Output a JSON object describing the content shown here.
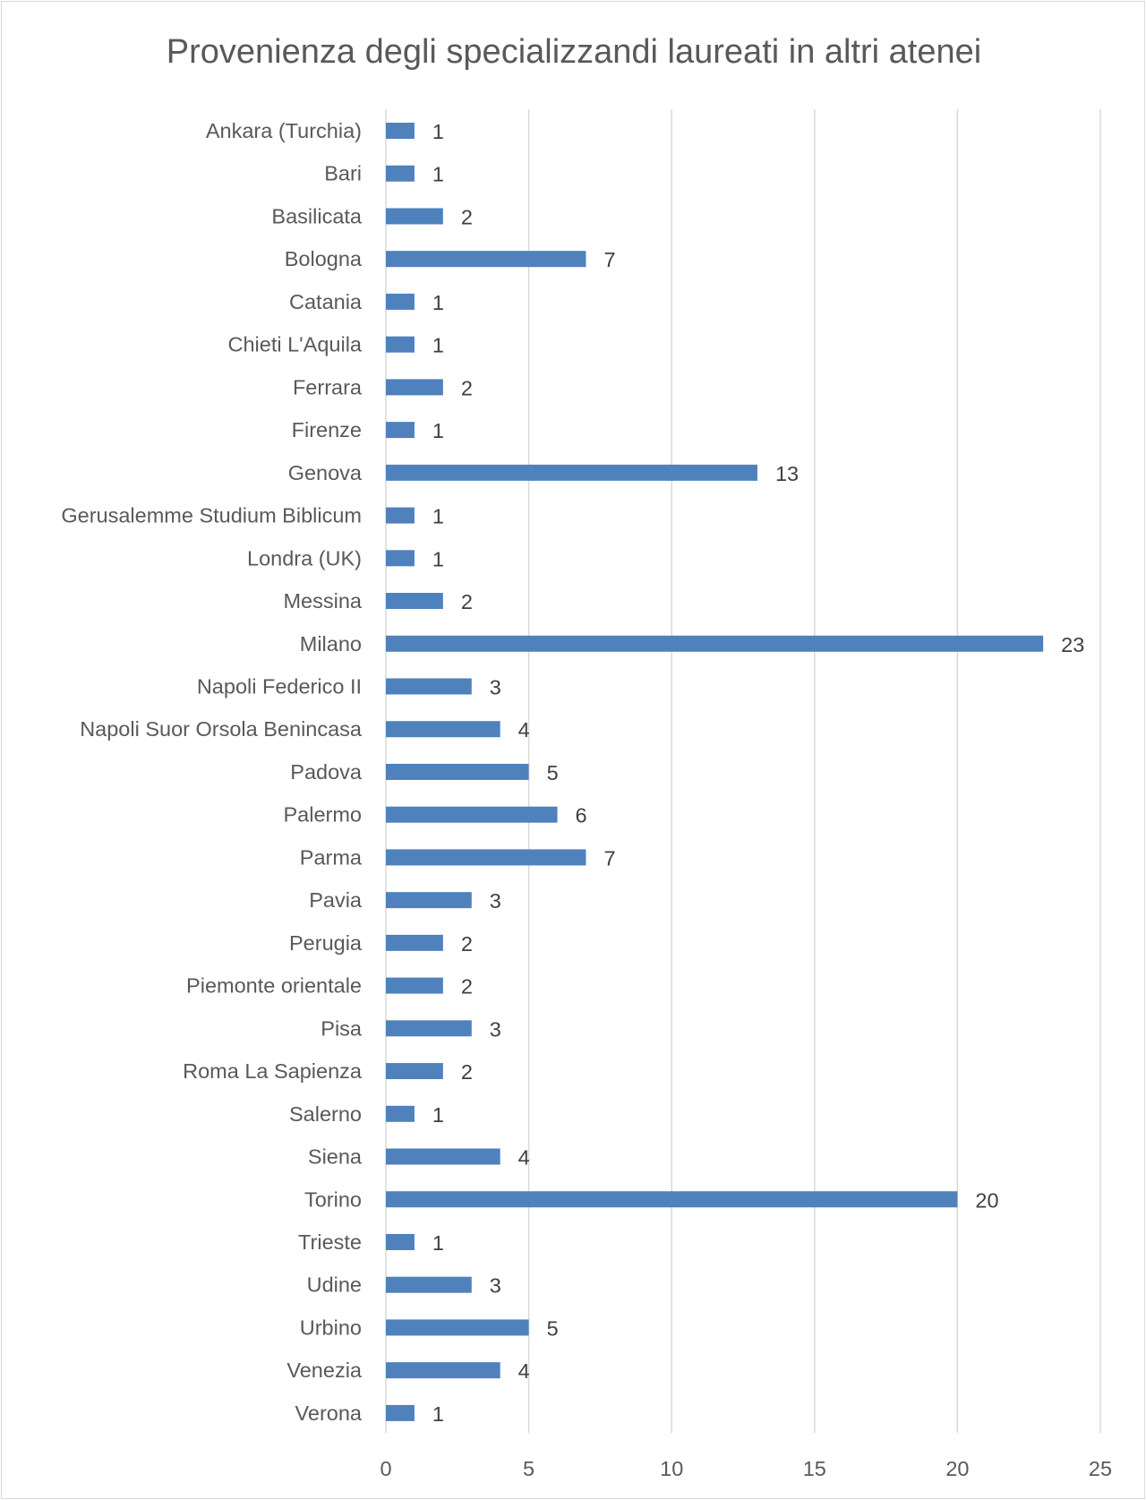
{
  "chart_data": {
    "type": "bar",
    "orientation": "horizontal",
    "title": "Provenienza degli specializzandi laureati in altri atenei",
    "categories": [
      "Ankara (Turchia)",
      "Bari",
      "Basilicata",
      "Bologna",
      "Catania",
      "Chieti L'Aquila",
      "Ferrara",
      "Firenze",
      "Genova",
      "Gerusalemme Studium Biblicum",
      "Londra (UK)",
      "Messina",
      "Milano",
      "Napoli Federico II",
      "Napoli Suor Orsola Benincasa",
      "Padova",
      "Palermo",
      "Parma",
      "Pavia",
      "Perugia",
      "Piemonte orientale",
      "Pisa",
      "Roma La Sapienza",
      "Salerno",
      "Siena",
      "Torino",
      "Trieste",
      "Udine",
      "Urbino",
      "Venezia",
      "Verona"
    ],
    "values": [
      1,
      1,
      2,
      7,
      1,
      1,
      2,
      1,
      13,
      1,
      1,
      2,
      23,
      3,
      4,
      5,
      6,
      7,
      3,
      2,
      2,
      3,
      2,
      1,
      4,
      20,
      1,
      3,
      5,
      4,
      1
    ],
    "xlim": [
      0,
      25
    ],
    "xticks": [
      "0",
      "5",
      "10",
      "15",
      "20",
      "25"
    ],
    "grid": "vertical",
    "data_labels": true,
    "legend": "none",
    "bar_color": "#4f81bd"
  }
}
